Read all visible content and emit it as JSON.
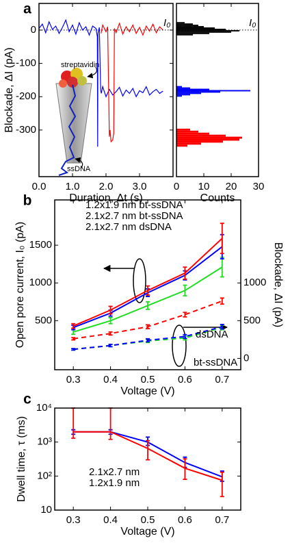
{
  "chart_data": [
    {
      "type": "line",
      "panel_label": "a",
      "xlabel": "Duration, Δt (s)",
      "ylabel": "Blockade, ΔI (pA)",
      "xlim": [
        0,
        4
      ],
      "ylim": [
        -440,
        80
      ],
      "xticks": [
        {
          "value": 0,
          "label": "0.0"
        },
        {
          "value": 1,
          "label": "1.0"
        },
        {
          "value": 2,
          "label": "2.0"
        },
        {
          "value": 3,
          "label": "3.0"
        }
      ],
      "yticks": [
        0,
        -100,
        -200,
        -300
      ],
      "hline": 0,
      "hline_label": "I₀",
      "annotations": [
        "streptavidin",
        "ssDNA"
      ],
      "series": [
        {
          "color": "#0000ff",
          "x": [
            0.0,
            0.1,
            0.2,
            0.3,
            0.4,
            0.5,
            0.6,
            0.7,
            0.8,
            0.9,
            1.0,
            1.1,
            1.2,
            1.3,
            1.4,
            1.5,
            1.6,
            1.7,
            1.74,
            1.75,
            1.76,
            1.8,
            1.84,
            1.86,
            1.9,
            2.0,
            2.1,
            2.2,
            2.3,
            2.4,
            2.5,
            2.6,
            2.7,
            2.8,
            2.9,
            3.0,
            3.1,
            3.2,
            3.3,
            3.4,
            3.5,
            3.6,
            3.7
          ],
          "y": [
            5,
            18,
            -8,
            25,
            2,
            12,
            -10,
            8,
            30,
            -5,
            15,
            -12,
            22,
            0,
            10,
            -15,
            12,
            5,
            -20,
            -350,
            -10,
            8,
            -180,
            -190,
            -170,
            -200,
            -178,
            -195,
            -185,
            -172,
            -198,
            -180,
            -190,
            -175,
            -200,
            -182,
            -188,
            -170,
            -195,
            -185,
            -178,
            -190,
            -183
          ]
        },
        {
          "color": "#ff0000",
          "x": [
            1.85,
            1.9,
            2.0,
            2.05,
            2.1,
            2.12,
            2.15,
            2.2,
            2.23,
            2.25,
            2.3,
            2.4,
            2.5,
            2.6,
            2.7,
            2.8,
            2.9,
            3.0,
            3.1,
            3.2,
            3.3,
            3.4,
            3.5,
            3.6,
            3.7
          ],
          "y": [
            -10,
            15,
            -5,
            10,
            -320,
            -300,
            -335,
            -330,
            -310,
            5,
            -8,
            20,
            -12,
            10,
            -5,
            15,
            -10,
            8,
            -15,
            12,
            -3,
            18,
            -8,
            10,
            0
          ]
        }
      ]
    },
    {
      "type": "histogram",
      "orientation": "horizontal",
      "xlabel": "Counts",
      "xlim": [
        0,
        30
      ],
      "ylim": [
        -440,
        80
      ],
      "xticks": [
        0,
        10,
        20,
        30
      ],
      "hline": 0,
      "hline_label": "I₀",
      "series": [
        {
          "color": "#000000",
          "bins": [
            -16,
            -12,
            -8,
            -4,
            0,
            4,
            8,
            12,
            16,
            20,
            24
          ],
          "counts": [
            6,
            12,
            20,
            23,
            18,
            14,
            10,
            8,
            6,
            3
          ]
        },
        {
          "color": "#0000ff",
          "bins": [
            -200,
            -196,
            -192,
            -188,
            -184,
            -180,
            -176,
            -172,
            -168
          ],
          "counts": [
            2,
            5,
            9,
            16,
            27,
            12,
            5,
            2
          ]
        },
        {
          "color": "#ff0000",
          "bins": [
            -350,
            -344,
            -338,
            -332,
            -326,
            -320,
            -314,
            -308,
            -302,
            -296
          ],
          "counts": [
            4,
            9,
            17,
            23,
            24,
            18,
            12,
            8,
            5
          ]
        }
      ]
    },
    {
      "type": "line",
      "panel_label": "b",
      "xlabel": "Voltage (V)",
      "ylabel": "Open pore current, I₀ (pA)",
      "y2label": "Blockade, ΔI (pA)",
      "x": [
        0.3,
        0.4,
        0.5,
        0.6,
        0.7
      ],
      "xlim": [
        0.25,
        0.75
      ],
      "xticks": [
        0.3,
        0.4,
        0.5,
        0.6,
        0.7
      ],
      "ylim": [
        -150,
        2100
      ],
      "yticks": [
        500,
        1000,
        1500
      ],
      "y2lim": [
        -150,
        2100
      ],
      "y2ticks": [
        0,
        500,
        1000
      ],
      "annotations": [
        "dsDNA",
        "bt-ssDNA"
      ],
      "series": [
        {
          "name": "1.2x1.9 nm bt-ssDNA",
          "color": "#22dd22",
          "values": [
            350,
            500,
            700,
            900,
            1210
          ],
          "errors": [
            30,
            40,
            50,
            70,
            130
          ],
          "y2_values": [
            120,
            170,
            230,
            270,
            410
          ],
          "y2_errors": [
            10,
            15,
            20,
            25,
            30
          ]
        },
        {
          "name": "2.1x2.7 nm bt-ssDNA",
          "color": "#0000ff",
          "values": [
            410,
            600,
            870,
            1100,
            1480
          ],
          "errors": [
            30,
            40,
            50,
            60,
            160
          ],
          "y2_values": [
            120,
            170,
            240,
            290,
            420
          ],
          "y2_errors": [
            10,
            15,
            20,
            25,
            30
          ]
        },
        {
          "name": "2.1x2.7 nm dsDNA",
          "color": "#ff0000",
          "values": [
            430,
            640,
            900,
            1130,
            1590
          ],
          "errors": [
            30,
            50,
            60,
            80,
            200
          ],
          "y2_values": [
            260,
            330,
            420,
            580,
            760
          ],
          "y2_errors": [
            15,
            20,
            25,
            30,
            40
          ]
        }
      ]
    },
    {
      "type": "line",
      "panel_label": "c",
      "xlabel": "Voltage (V)",
      "ylabel": "Dwell time, τ (ms)",
      "x": [
        0.3,
        0.4,
        0.5,
        0.6,
        0.7
      ],
      "xlim": [
        0.25,
        0.75
      ],
      "xticks": [
        0.3,
        0.4,
        0.5,
        0.6,
        0.7
      ],
      "ylog": true,
      "ylim": [
        10,
        10000
      ],
      "yticks": [
        10,
        {
          "value": 100,
          "label": "10²"
        },
        {
          "value": 1000,
          "label": "10³"
        },
        {
          "value": 10000,
          "label": "10⁴"
        }
      ],
      "series": [
        {
          "name": "2.1x2.7 nm",
          "color": "#0000ff",
          "values": [
            2000,
            2000,
            1000,
            250,
            95
          ],
          "lower": [
            1700,
            1700,
            800,
            180,
            70
          ],
          "upper": [
            2300,
            2300,
            1400,
            360,
            140
          ]
        },
        {
          "name": "1.2x1.9 nm",
          "color": "#ff0000",
          "values": [
            2000,
            2000,
            650,
            170,
            75
          ],
          "lower": [
            1300,
            1200,
            300,
            80,
            25
          ],
          "upper": [
            10000,
            10000,
            1100,
            320,
            130
          ]
        }
      ]
    }
  ]
}
